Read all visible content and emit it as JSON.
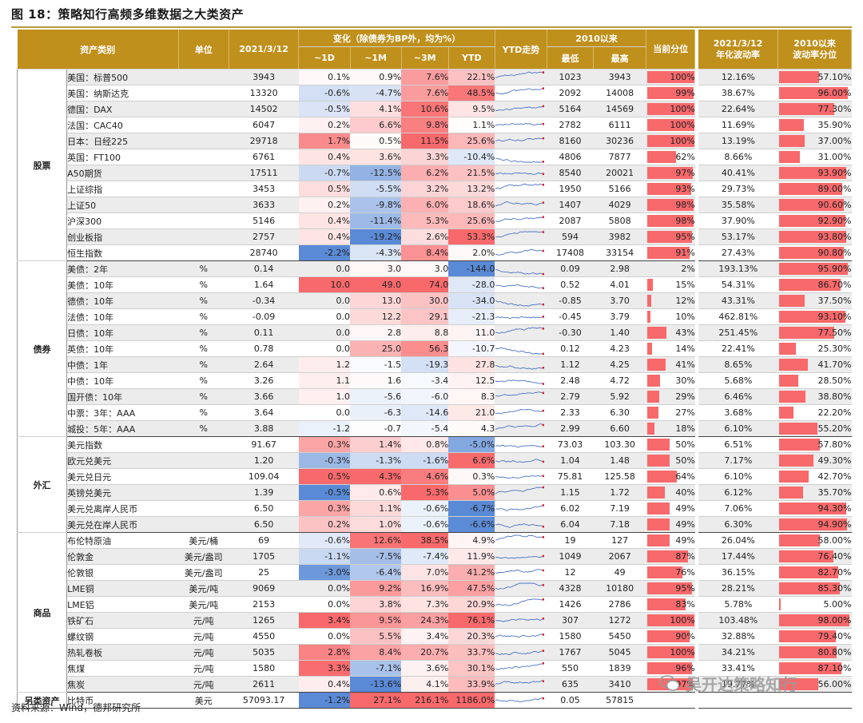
{
  "figure_title": "图 18：策略知行高频多维数据之大类资产",
  "footer": "资料来源：Wind，德邦研究所",
  "watermark": "吴开达策略知行",
  "headers": {
    "asset": "资产类别",
    "unit": "单位",
    "date": "2021/3/12",
    "change": "变化（除债券为BP外，均为%）",
    "d1": "~1D",
    "m1": "~1M",
    "m3": "~3M",
    "ytd": "YTD",
    "ytd_trend": "YTD走势",
    "since2010": "2010以来",
    "low": "最低",
    "high": "最高",
    "pct": "当前分位",
    "vol_date": "2021/3/12",
    "vol_label": "年化波动率",
    "since2010_vol": "2010以来",
    "vol_pct": "波动率分位"
  },
  "groups": [
    {
      "name": "股票",
      "rows": [
        {
          "name": "美国：标普500",
          "unit": "",
          "value": "3943",
          "d1": "0.1%",
          "m1": "0.9%",
          "m3": "7.6%",
          "ytd": "22.1%",
          "low": "1023",
          "high": "3943",
          "pct": "100%",
          "vol": "12.16%",
          "vol_pct": "57.10%"
        },
        {
          "name": "美国：纳斯达克",
          "unit": "",
          "value": "13320",
          "d1": "-0.6%",
          "m1": "-4.7%",
          "m3": "7.6%",
          "ytd": "48.5%",
          "low": "2092",
          "high": "14008",
          "pct": "99%",
          "vol": "38.67%",
          "vol_pct": "96.00%"
        },
        {
          "name": "德国：DAX",
          "unit": "",
          "value": "14502",
          "d1": "-0.5%",
          "m1": "4.1%",
          "m3": "10.6%",
          "ytd": "9.5%",
          "low": "5164",
          "high": "14569",
          "pct": "100%",
          "vol": "22.64%",
          "vol_pct": "77.30%"
        },
        {
          "name": "法国：CAC40",
          "unit": "",
          "value": "6047",
          "d1": "0.2%",
          "m1": "6.6%",
          "m3": "9.8%",
          "ytd": "1.1%",
          "low": "2782",
          "high": "6111",
          "pct": "100%",
          "vol": "11.69%",
          "vol_pct": "35.90%"
        },
        {
          "name": "日本：日经225",
          "unit": "",
          "value": "29718",
          "d1": "1.7%",
          "m1": "0.5%",
          "m3": "11.5%",
          "ytd": "25.6%",
          "low": "8160",
          "high": "30236",
          "pct": "100%",
          "vol": "13.19%",
          "vol_pct": "37.00%"
        },
        {
          "name": "英国：FT100",
          "unit": "",
          "value": "6761",
          "d1": "0.4%",
          "m1": "3.6%",
          "m3": "3.3%",
          "ytd": "-10.4%",
          "low": "4806",
          "high": "7877",
          "pct": "62%",
          "vol": "8.66%",
          "vol_pct": "31.00%"
        },
        {
          "name": "A50期货",
          "unit": "",
          "value": "17511",
          "d1": "-0.7%",
          "m1": "-12.5%",
          "m3": "6.2%",
          "ytd": "21.5%",
          "low": "8540",
          "high": "20021",
          "pct": "97%",
          "vol": "40.41%",
          "vol_pct": "93.90%"
        },
        {
          "name": "上证综指",
          "unit": "",
          "value": "3453",
          "d1": "0.5%",
          "m1": "-5.5%",
          "m3": "3.2%",
          "ytd": "13.2%",
          "low": "1950",
          "high": "5166",
          "pct": "93%",
          "vol": "29.73%",
          "vol_pct": "89.00%"
        },
        {
          "name": "上证50",
          "unit": "",
          "value": "3633",
          "d1": "0.2%",
          "m1": "-9.8%",
          "m3": "6.0%",
          "ytd": "18.6%",
          "low": "1407",
          "high": "4029",
          "pct": "98%",
          "vol": "35.58%",
          "vol_pct": "90.60%"
        },
        {
          "name": "沪深300",
          "unit": "",
          "value": "5146",
          "d1": "0.4%",
          "m1": "-11.4%",
          "m3": "5.3%",
          "ytd": "25.6%",
          "low": "2087",
          "high": "5808",
          "pct": "98%",
          "vol": "37.90%",
          "vol_pct": "92.90%"
        },
        {
          "name": "创业板指",
          "unit": "",
          "value": "2757",
          "d1": "0.4%",
          "m1": "-19.2%",
          "m3": "2.6%",
          "ytd": "53.3%",
          "low": "594",
          "high": "3982",
          "pct": "95%",
          "vol": "53.17%",
          "vol_pct": "93.80%"
        },
        {
          "name": "恒生指数",
          "unit": "",
          "value": "28740",
          "d1": "-2.2%",
          "m1": "-4.3%",
          "m3": "8.4%",
          "ytd": "2.0%",
          "low": "17408",
          "high": "33154",
          "pct": "91%",
          "vol": "27.43%",
          "vol_pct": "90.80%"
        }
      ]
    },
    {
      "name": "债券",
      "rows": [
        {
          "name": "美债：2年",
          "unit": "%",
          "value": "0.14",
          "d1": "0.0",
          "m1": "3.0",
          "m3": "3.0",
          "ytd": "-144.0",
          "low": "0.09",
          "high": "2.98",
          "pct": "2%",
          "vol": "193.13%",
          "vol_pct": "95.90%"
        },
        {
          "name": "美债：10年",
          "unit": "%",
          "value": "1.64",
          "d1": "10.0",
          "m1": "49.0",
          "m3": "74.0",
          "ytd": "-28.0",
          "low": "0.52",
          "high": "4.01",
          "pct": "15%",
          "vol": "54.31%",
          "vol_pct": "86.70%"
        },
        {
          "name": "德债：10年",
          "unit": "%",
          "value": "-0.34",
          "d1": "0.0",
          "m1": "13.0",
          "m3": "30.0",
          "ytd": "-34.0",
          "low": "-0.85",
          "high": "3.70",
          "pct": "12%",
          "vol": "43.31%",
          "vol_pct": "37.50%"
        },
        {
          "name": "法债：10年",
          "unit": "%",
          "value": "-0.09",
          "d1": "0.0",
          "m1": "12.2",
          "m3": "29.1",
          "ytd": "-21.3",
          "low": "-0.45",
          "high": "3.79",
          "pct": "10%",
          "vol": "462.81%",
          "vol_pct": "93.10%"
        },
        {
          "name": "日债：10年",
          "unit": "%",
          "value": "0.11",
          "d1": "0.0",
          "m1": "2.8",
          "m3": "8.8",
          "ytd": "11.0",
          "low": "-0.30",
          "high": "1.40",
          "pct": "43%",
          "vol": "251.45%",
          "vol_pct": "77.50%"
        },
        {
          "name": "英债：10年",
          "unit": "%",
          "value": "0.78",
          "d1": "0.0",
          "m1": "25.0",
          "m3": "56.3",
          "ytd": "-10.7",
          "low": "0.12",
          "high": "4.23",
          "pct": "14%",
          "vol": "22.41%",
          "vol_pct": "25.30%"
        },
        {
          "name": "中债：1年",
          "unit": "%",
          "value": "2.64",
          "d1": "1.2",
          "m1": "-1.5",
          "m3": "-19.3",
          "ytd": "27.8",
          "low": "1.12",
          "high": "4.25",
          "pct": "41%",
          "vol": "8.65%",
          "vol_pct": "41.70%"
        },
        {
          "name": "中债：10年",
          "unit": "%",
          "value": "3.26",
          "d1": "1.1",
          "m1": "1.6",
          "m3": "-3.4",
          "ytd": "12.5",
          "low": "2.48",
          "high": "4.72",
          "pct": "30%",
          "vol": "5.68%",
          "vol_pct": "28.50%"
        },
        {
          "name": "国开债：10年",
          "unit": "%",
          "value": "3.66",
          "d1": "1.0",
          "m1": "-5.6",
          "m3": "-6.0",
          "ytd": "8.3",
          "low": "2.79",
          "high": "5.92",
          "pct": "29%",
          "vol": "6.46%",
          "vol_pct": "38.80%"
        },
        {
          "name": "中票：3年：AAA",
          "unit": "%",
          "value": "3.64",
          "d1": "0.0",
          "m1": "-6.3",
          "m3": "-14.6",
          "ytd": "21.0",
          "low": "2.33",
          "high": "6.30",
          "pct": "27%",
          "vol": "3.68%",
          "vol_pct": "22.20%"
        },
        {
          "name": "城投：5年：AAA",
          "unit": "%",
          "value": "3.88",
          "d1": "-1.2",
          "m1": "-0.7",
          "m3": "-5.4",
          "ytd": "4.3",
          "low": "2.99",
          "high": "6.60",
          "pct": "18%",
          "vol": "6.10%",
          "vol_pct": "55.20%"
        }
      ]
    },
    {
      "name": "外汇",
      "rows": [
        {
          "name": "美元指数",
          "unit": "",
          "value": "91.67",
          "d1": "0.3%",
          "m1": "1.4%",
          "m3": "0.8%",
          "ytd": "-5.0%",
          "low": "73.03",
          "high": "103.30",
          "pct": "50%",
          "vol": "6.51%",
          "vol_pct": "57.80%"
        },
        {
          "name": "欧元兑美元",
          "unit": "",
          "value": "1.20",
          "d1": "-0.3%",
          "m1": "-1.3%",
          "m3": "-1.6%",
          "ytd": "6.6%",
          "low": "1.04",
          "high": "1.48",
          "pct": "50%",
          "vol": "7.17%",
          "vol_pct": "49.30%"
        },
        {
          "name": "美元兑日元",
          "unit": "",
          "value": "109.04",
          "d1": "0.5%",
          "m1": "4.3%",
          "m3": "4.6%",
          "ytd": "0.3%",
          "low": "75.81",
          "high": "125.58",
          "pct": "64%",
          "vol": "6.10%",
          "vol_pct": "42.70%"
        },
        {
          "name": "英镑兑美元",
          "unit": "",
          "value": "1.39",
          "d1": "-0.5%",
          "m1": "0.6%",
          "m3": "5.3%",
          "ytd": "5.0%",
          "low": "1.15",
          "high": "1.72",
          "pct": "40%",
          "vol": "6.12%",
          "vol_pct": "35.70%"
        },
        {
          "name": "美元兑离岸人民币",
          "unit": "",
          "value": "6.50",
          "d1": "0.3%",
          "m1": "1.1%",
          "m3": "-0.6%",
          "ytd": "-6.7%",
          "low": "6.02",
          "high": "7.19",
          "pct": "49%",
          "vol": "7.06%",
          "vol_pct": "94.30%"
        },
        {
          "name": "美元兑在岸人民币",
          "unit": "",
          "value": "6.50",
          "d1": "0.2%",
          "m1": "1.0%",
          "m3": "-0.6%",
          "ytd": "-6.6%",
          "low": "6.04",
          "high": "7.18",
          "pct": "49%",
          "vol": "6.30%",
          "vol_pct": "94.90%"
        }
      ]
    },
    {
      "name": "商品",
      "rows": [
        {
          "name": "布伦特原油",
          "unit": "美元/桶",
          "value": "69",
          "d1": "-0.6%",
          "m1": "12.6%",
          "m3": "38.5%",
          "ytd": "4.9%",
          "low": "19",
          "high": "127",
          "pct": "49%",
          "vol": "26.04%",
          "vol_pct": "58.00%"
        },
        {
          "name": "伦敦金",
          "unit": "美元/盎司",
          "value": "1705",
          "d1": "-1.1%",
          "m1": "-7.5%",
          "m3": "-7.4%",
          "ytd": "11.9%",
          "low": "1049",
          "high": "2067",
          "pct": "87%",
          "vol": "17.44%",
          "vol_pct": "76.40%"
        },
        {
          "name": "伦敦银",
          "unit": "美元/盎司",
          "value": "25",
          "d1": "-3.0%",
          "m1": "-6.4%",
          "m3": "7.0%",
          "ytd": "41.2%",
          "low": "12",
          "high": "49",
          "pct": "76%",
          "vol": "36.15%",
          "vol_pct": "82.70%"
        },
        {
          "name": "LME铜",
          "unit": "美元/吨",
          "value": "9069",
          "d1": "0.0%",
          "m1": "9.2%",
          "m3": "16.9%",
          "ytd": "47.5%",
          "low": "4328",
          "high": "10180",
          "pct": "95%",
          "vol": "28.21%",
          "vol_pct": "85.30%"
        },
        {
          "name": "LME铝",
          "unit": "美元/吨",
          "value": "2153",
          "d1": "0.0%",
          "m1": "3.8%",
          "m3": "7.3%",
          "ytd": "20.9%",
          "low": "1426",
          "high": "2786",
          "pct": "83%",
          "vol": "5.78%",
          "vol_pct": "5.00%"
        },
        {
          "name": "铁矿石",
          "unit": "元/吨",
          "value": "1265",
          "d1": "3.4%",
          "m1": "9.5%",
          "m3": "24.3%",
          "ytd": "76.1%",
          "low": "307",
          "high": "1272",
          "pct": "100%",
          "vol": "103.48%",
          "vol_pct": "98.00%"
        },
        {
          "name": "螺纹钢",
          "unit": "元/吨",
          "value": "4550",
          "d1": "0.0%",
          "m1": "5.5%",
          "m3": "3.4%",
          "ytd": "20.3%",
          "low": "1580",
          "high": "5450",
          "pct": "90%",
          "vol": "32.88%",
          "vol_pct": "79.40%"
        },
        {
          "name": "热轧卷板",
          "unit": "元/吨",
          "value": "5035",
          "d1": "2.8%",
          "m1": "8.4%",
          "m3": "20.7%",
          "ytd": "33.7%",
          "low": "1767",
          "high": "5045",
          "pct": "100%",
          "vol": "34.21%",
          "vol_pct": "80.80%"
        },
        {
          "name": "焦煤",
          "unit": "元/吨",
          "value": "1580",
          "d1": "3.3%",
          "m1": "-7.1%",
          "m3": "3.6%",
          "ytd": "30.1%",
          "low": "550",
          "high": "1839",
          "pct": "96%",
          "vol": "33.41%",
          "vol_pct": "87.10%"
        },
        {
          "name": "焦炭",
          "unit": "元/吨",
          "value": "2611",
          "d1": "0.4%",
          "m1": "-13.6%",
          "m3": "4.1%",
          "ytd": "33.9%",
          "low": "635",
          "high": "3410",
          "pct": "97%",
          "vol": "19.77%",
          "vol_pct": "56.00%"
        }
      ]
    },
    {
      "name": "另类资产",
      "rows": [
        {
          "name": "比特币",
          "unit": "美元",
          "value": "57093.17",
          "d1": "-1.2%",
          "m1": "27.1%",
          "m3": "216.1%",
          "ytd": "1186.0%",
          "low": "0.05",
          "high": "57815",
          "pct": "",
          "vol": "",
          "vol_pct": ""
        }
      ]
    }
  ],
  "colors": {
    "header_bg": "#c0901c",
    "pos": "#f8696b",
    "neg": "#5b8bd6",
    "bar": "#f8696b"
  }
}
